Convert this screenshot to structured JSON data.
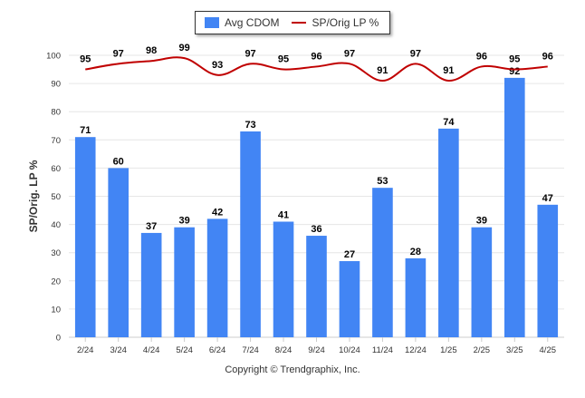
{
  "legend": {
    "bar_label": "Avg CDOM",
    "line_label": "SP/Orig LP %"
  },
  "copyright": "Copyright © Trendgraphix, Inc.",
  "colors": {
    "bar": "#4285f4",
    "line": "#c00000",
    "grid": "#e6e6e6",
    "axis_text": "#333333"
  },
  "chart_data": {
    "type": "bar",
    "categories": [
      "2/24",
      "3/24",
      "4/24",
      "5/24",
      "6/24",
      "7/24",
      "8/24",
      "9/24",
      "10/24",
      "11/24",
      "12/24",
      "1/25",
      "2/25",
      "3/25",
      "4/25"
    ],
    "ylabel": "SP/Orig. LP %",
    "ylim": [
      0,
      100
    ],
    "yticks": [
      0,
      10,
      20,
      30,
      40,
      50,
      60,
      70,
      80,
      90,
      100
    ],
    "grid": true,
    "legend_position": "top-center",
    "series": [
      {
        "name": "Avg CDOM",
        "type": "bar",
        "values": [
          71,
          60,
          37,
          39,
          42,
          73,
          41,
          36,
          27,
          53,
          28,
          74,
          39,
          92,
          47
        ]
      },
      {
        "name": "SP/Orig LP %",
        "type": "line",
        "values": [
          95,
          97,
          98,
          99,
          93,
          97,
          95,
          96,
          97,
          91,
          97,
          91,
          96,
          95,
          96
        ]
      }
    ]
  }
}
